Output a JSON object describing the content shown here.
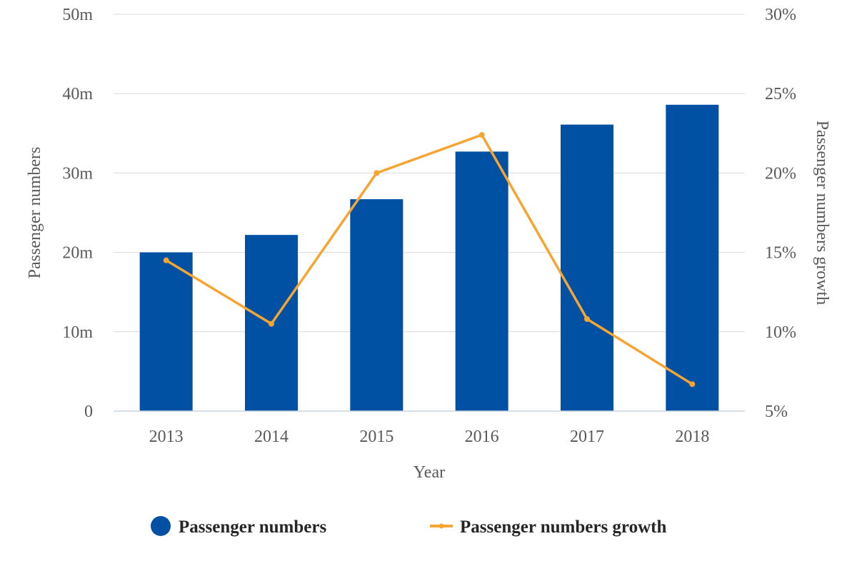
{
  "chart_data": {
    "type": "bar",
    "categories": [
      "2013",
      "2014",
      "2015",
      "2016",
      "2017",
      "2018"
    ],
    "series": [
      {
        "name": "Passenger numbers",
        "type": "bar",
        "axis": "left",
        "values": [
          20.0,
          22.2,
          26.7,
          32.7,
          36.1,
          38.6
        ],
        "color": "#0051A3"
      },
      {
        "name": "Passenger numbers growth",
        "type": "line",
        "axis": "right",
        "values": [
          14.5,
          10.5,
          20.0,
          22.4,
          10.8,
          6.7
        ],
        "color": "#F6A532"
      }
    ],
    "xlabel": "Year",
    "ylabel": "Passenger numbers",
    "y2label": "Passenger numbers growth",
    "ylim": [
      0,
      50
    ],
    "y2lim": [
      5,
      30
    ],
    "yticks": [
      "0",
      "10m",
      "20m",
      "30m",
      "40m",
      "50m"
    ],
    "y2ticks": [
      "5%",
      "10%",
      "15%",
      "20%",
      "25%",
      "30%"
    ],
    "grid": true,
    "legend_position": "bottom"
  }
}
